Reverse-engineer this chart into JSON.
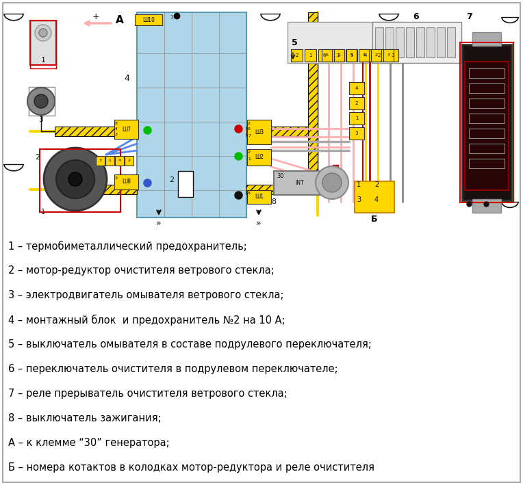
{
  "bg_color": "#ffffff",
  "fig_width": 7.64,
  "fig_height": 7.09,
  "dpi": 100,
  "legend_items": [
    "1 – термобиметаллический предохранитель;",
    "2 – мотор-редуктор очистителя ветрового стекла;",
    "3 – электродвигатель омывателя ветрового стекла;",
    "4 – монтажный блок  и предохранитель №2 на 10 А;",
    "5 – выключатель омывателя в составе подрулевого переключателя;",
    "6 – переключатель очистителя в подрулевом переключателе;",
    "7 – реле прерыватель очистителя ветрового стекла;",
    "8 – выключатель зажигания;",
    "А – к клемме “30” генератора;",
    "Б – номера котактов в колодках мотор-редуктора и реле очистителя"
  ],
  "legend_font_size": 10.5,
  "outer_border_color": "#aaaaaa",
  "yellow": "#FFD700",
  "yellow_dark": "#cc8800",
  "red": "#cc0000",
  "blue_light": "#aed6e8",
  "pink": "#ffb0b0",
  "gray": "#aaaaaa",
  "blue_wire": "#5588ee",
  "black": "#111111",
  "white": "#f5f5f5",
  "relay_dark": "#1a1010",
  "relay_red": "#8B0000"
}
